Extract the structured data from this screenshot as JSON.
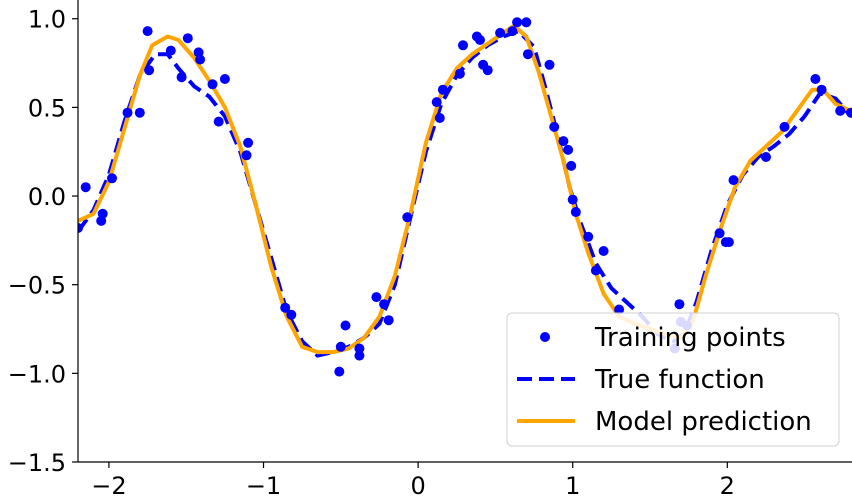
{
  "chart_data": {
    "type": "line",
    "title": "",
    "xlabel": "",
    "ylabel": "",
    "xlim": [
      -2.2,
      2.8
    ],
    "ylim": [
      -1.5,
      1.1
    ],
    "xticks": [
      -2,
      -1,
      0,
      1,
      2
    ],
    "xtick_labels": [
      "−2",
      "−1",
      "0",
      "1",
      "2"
    ],
    "yticks": [
      -1.5,
      -1.0,
      -0.5,
      0.0,
      0.5,
      1.0
    ],
    "ytick_labels": [
      "−1.5",
      "−1.0",
      "−0.5",
      "0.0",
      "0.5",
      "1.0"
    ],
    "grid": false,
    "legend_position": "lower-right",
    "series": [
      {
        "name": "Training points",
        "style": "scatter",
        "color": "#0000ff",
        "points": [
          [
            -2.2,
            -0.18
          ],
          [
            -2.15,
            0.05
          ],
          [
            -2.05,
            -0.14
          ],
          [
            -2.04,
            -0.1
          ],
          [
            -1.98,
            0.1
          ],
          [
            -1.88,
            0.47
          ],
          [
            -1.8,
            0.47
          ],
          [
            -1.75,
            0.93
          ],
          [
            -1.74,
            0.71
          ],
          [
            -1.6,
            0.82
          ],
          [
            -1.53,
            0.67
          ],
          [
            -1.49,
            0.89
          ],
          [
            -1.42,
            0.81
          ],
          [
            -1.41,
            0.77
          ],
          [
            -1.33,
            0.63
          ],
          [
            -1.29,
            0.42
          ],
          [
            -1.25,
            0.66
          ],
          [
            -1.11,
            0.23
          ],
          [
            -1.1,
            0.3
          ],
          [
            -0.86,
            -0.63
          ],
          [
            -0.82,
            -0.67
          ],
          [
            -0.51,
            -0.99
          ],
          [
            -0.5,
            -0.85
          ],
          [
            -0.47,
            -0.73
          ],
          [
            -0.38,
            -0.9
          ],
          [
            -0.38,
            -0.86
          ],
          [
            -0.27,
            -0.57
          ],
          [
            -0.22,
            -0.61
          ],
          [
            -0.19,
            -0.7
          ],
          [
            -0.07,
            -0.12
          ],
          [
            0.12,
            0.53
          ],
          [
            0.14,
            0.44
          ],
          [
            0.16,
            0.6
          ],
          [
            0.27,
            0.69
          ],
          [
            0.29,
            0.85
          ],
          [
            0.38,
            0.9
          ],
          [
            0.4,
            0.88
          ],
          [
            0.42,
            0.74
          ],
          [
            0.45,
            0.71
          ],
          [
            0.53,
            0.92
          ],
          [
            0.61,
            0.93
          ],
          [
            0.64,
            0.98
          ],
          [
            0.7,
            0.98
          ],
          [
            0.71,
            0.8
          ],
          [
            0.85,
            0.74
          ],
          [
            0.88,
            0.39
          ],
          [
            0.94,
            0.31
          ],
          [
            0.97,
            0.26
          ],
          [
            0.99,
            0.17
          ],
          [
            1.0,
            -0.02
          ],
          [
            1.02,
            -0.09
          ],
          [
            1.1,
            -0.23
          ],
          [
            1.15,
            -0.42
          ],
          [
            1.2,
            -0.31
          ],
          [
            1.3,
            -0.64
          ],
          [
            1.66,
            -0.86
          ],
          [
            1.69,
            -0.61
          ],
          [
            1.7,
            -0.71
          ],
          [
            1.74,
            -0.73
          ],
          [
            1.95,
            -0.21
          ],
          [
            1.99,
            -0.26
          ],
          [
            2.01,
            -0.26
          ],
          [
            2.04,
            0.09
          ],
          [
            2.25,
            0.22
          ],
          [
            2.37,
            0.39
          ],
          [
            2.57,
            0.66
          ],
          [
            2.61,
            0.6
          ],
          [
            2.73,
            0.48
          ],
          [
            2.8,
            0.47
          ]
        ]
      },
      {
        "name": "True function",
        "style": "dashed",
        "color": "#0000ff",
        "points": [
          [
            -2.2,
            -0.2
          ],
          [
            -2.1,
            -0.08
          ],
          [
            -2.0,
            0.12
          ],
          [
            -1.9,
            0.42
          ],
          [
            -1.8,
            0.68
          ],
          [
            -1.7,
            0.8
          ],
          [
            -1.62,
            0.8
          ],
          [
            -1.55,
            0.72
          ],
          [
            -1.45,
            0.62
          ],
          [
            -1.35,
            0.56
          ],
          [
            -1.25,
            0.45
          ],
          [
            -1.15,
            0.25
          ],
          [
            -1.05,
            -0.05
          ],
          [
            -0.95,
            -0.35
          ],
          [
            -0.85,
            -0.65
          ],
          [
            -0.75,
            -0.82
          ],
          [
            -0.65,
            -0.9
          ],
          [
            -0.55,
            -0.88
          ],
          [
            -0.45,
            -0.85
          ],
          [
            -0.35,
            -0.8
          ],
          [
            -0.25,
            -0.72
          ],
          [
            -0.15,
            -0.5
          ],
          [
            -0.05,
            -0.12
          ],
          [
            0.05,
            0.25
          ],
          [
            0.15,
            0.52
          ],
          [
            0.25,
            0.68
          ],
          [
            0.35,
            0.78
          ],
          [
            0.45,
            0.85
          ],
          [
            0.55,
            0.9
          ],
          [
            0.65,
            0.93
          ],
          [
            0.75,
            0.84
          ],
          [
            0.82,
            0.62
          ],
          [
            0.9,
            0.35
          ],
          [
            0.98,
            0.05
          ],
          [
            1.05,
            -0.15
          ],
          [
            1.15,
            -0.38
          ],
          [
            1.25,
            -0.52
          ],
          [
            1.35,
            -0.6
          ],
          [
            1.45,
            -0.68
          ],
          [
            1.55,
            -0.78
          ],
          [
            1.65,
            -0.82
          ],
          [
            1.72,
            -0.78
          ],
          [
            1.8,
            -0.6
          ],
          [
            1.9,
            -0.3
          ],
          [
            2.0,
            -0.05
          ],
          [
            2.1,
            0.12
          ],
          [
            2.2,
            0.22
          ],
          [
            2.3,
            0.28
          ],
          [
            2.4,
            0.35
          ],
          [
            2.5,
            0.45
          ],
          [
            2.6,
            0.58
          ],
          [
            2.7,
            0.55
          ],
          [
            2.8,
            0.45
          ]
        ]
      },
      {
        "name": "Model prediction",
        "style": "solid",
        "color": "#ffa500",
        "points": [
          [
            -2.2,
            -0.14
          ],
          [
            -2.1,
            -0.1
          ],
          [
            -2.0,
            0.08
          ],
          [
            -1.9,
            0.38
          ],
          [
            -1.8,
            0.68
          ],
          [
            -1.72,
            0.85
          ],
          [
            -1.62,
            0.9
          ],
          [
            -1.55,
            0.88
          ],
          [
            -1.45,
            0.78
          ],
          [
            -1.35,
            0.65
          ],
          [
            -1.25,
            0.5
          ],
          [
            -1.15,
            0.28
          ],
          [
            -1.05,
            -0.05
          ],
          [
            -0.95,
            -0.4
          ],
          [
            -0.85,
            -0.68
          ],
          [
            -0.75,
            -0.85
          ],
          [
            -0.65,
            -0.88
          ],
          [
            -0.55,
            -0.88
          ],
          [
            -0.45,
            -0.86
          ],
          [
            -0.35,
            -0.8
          ],
          [
            -0.25,
            -0.68
          ],
          [
            -0.15,
            -0.45
          ],
          [
            -0.05,
            -0.1
          ],
          [
            0.05,
            0.3
          ],
          [
            0.15,
            0.58
          ],
          [
            0.25,
            0.72
          ],
          [
            0.35,
            0.8
          ],
          [
            0.45,
            0.86
          ],
          [
            0.55,
            0.92
          ],
          [
            0.62,
            0.96
          ],
          [
            0.7,
            0.9
          ],
          [
            0.78,
            0.7
          ],
          [
            0.86,
            0.45
          ],
          [
            0.94,
            0.2
          ],
          [
            1.02,
            -0.1
          ],
          [
            1.1,
            -0.32
          ],
          [
            1.2,
            -0.55
          ],
          [
            1.3,
            -0.68
          ],
          [
            1.4,
            -0.72
          ],
          [
            1.5,
            -0.75
          ],
          [
            1.6,
            -0.78
          ],
          [
            1.7,
            -0.8
          ],
          [
            1.78,
            -0.7
          ],
          [
            1.86,
            -0.45
          ],
          [
            1.95,
            -0.2
          ],
          [
            2.05,
            0.05
          ],
          [
            2.15,
            0.2
          ],
          [
            2.25,
            0.28
          ],
          [
            2.35,
            0.36
          ],
          [
            2.45,
            0.48
          ],
          [
            2.55,
            0.6
          ],
          [
            2.62,
            0.6
          ],
          [
            2.7,
            0.52
          ],
          [
            2.8,
            0.48
          ]
        ]
      }
    ]
  }
}
